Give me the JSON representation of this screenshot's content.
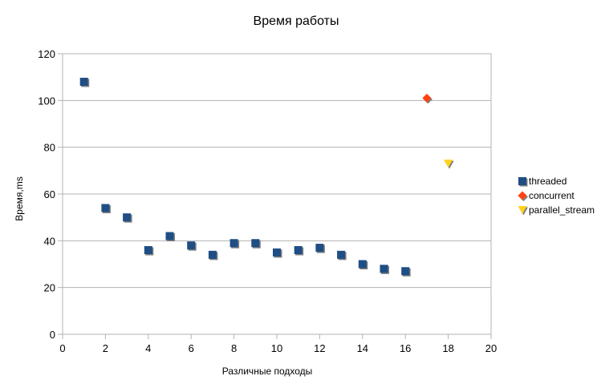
{
  "chart_data": {
    "type": "scatter",
    "title": "Время работы",
    "xlabel": "Различные подходы",
    "ylabel": "Время,ms",
    "xlim": [
      0,
      20
    ],
    "ylim": [
      0,
      120
    ],
    "xticks": [
      0,
      2,
      4,
      6,
      8,
      10,
      12,
      14,
      16,
      18,
      20
    ],
    "yticks": [
      0,
      20,
      40,
      60,
      80,
      100,
      120
    ],
    "grid": true,
    "legend_position": "right",
    "series": [
      {
        "name": "threaded",
        "marker": "square",
        "color": "#1f4e85",
        "points": [
          {
            "x": 1,
            "y": 108
          },
          {
            "x": 2,
            "y": 54
          },
          {
            "x": 3,
            "y": 50
          },
          {
            "x": 4,
            "y": 36
          },
          {
            "x": 5,
            "y": 42
          },
          {
            "x": 6,
            "y": 38
          },
          {
            "x": 7,
            "y": 34
          },
          {
            "x": 8,
            "y": 39
          },
          {
            "x": 9,
            "y": 39
          },
          {
            "x": 10,
            "y": 35
          },
          {
            "x": 11,
            "y": 36
          },
          {
            "x": 12,
            "y": 37
          },
          {
            "x": 13,
            "y": 34
          },
          {
            "x": 14,
            "y": 30
          },
          {
            "x": 15,
            "y": 28
          },
          {
            "x": 16,
            "y": 27
          }
        ]
      },
      {
        "name": "concurrent",
        "marker": "diamond",
        "color": "#ff420e",
        "points": [
          {
            "x": 17,
            "y": 101
          }
        ]
      },
      {
        "name": "parallel_stream",
        "marker": "triangle-down",
        "color": "#ffd320",
        "points": [
          {
            "x": 18,
            "y": 73
          }
        ]
      }
    ]
  }
}
